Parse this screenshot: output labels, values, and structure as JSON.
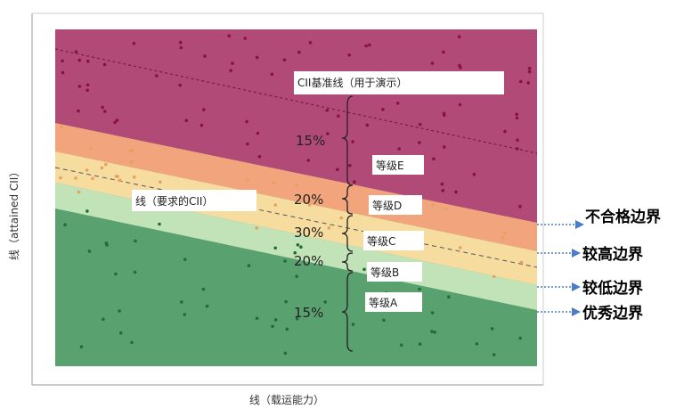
{
  "chart_data": {
    "type": "scatter",
    "title": "",
    "xlabel": "线（载运能力）",
    "ylabel": "线（attained CII）",
    "annotations": {
      "reference_line": "CII基准线（用于演示）",
      "required_line": "线（要求的CII）"
    },
    "bands": [
      {
        "name": "等级E",
        "percent": "15%",
        "color": "#b24a78"
      },
      {
        "name": "等级D",
        "percent": "20%",
        "color": "#f2a57c"
      },
      {
        "name": "等级C",
        "percent": "30%",
        "color": "#f7dca0"
      },
      {
        "name": "等级B",
        "percent": "20%",
        "color": "#c2e3b8"
      },
      {
        "name": "等级A",
        "percent": "15%",
        "color": "#5aa170"
      }
    ],
    "boundaries": [
      "不合格边界",
      "较高边界",
      "较低边界",
      "优秀边界"
    ],
    "arrow_color": "#4a7cc7",
    "point_colors": {
      "upper": "#8a1040",
      "lower": "#1f6e3a",
      "middle": "#e6a060"
    }
  }
}
